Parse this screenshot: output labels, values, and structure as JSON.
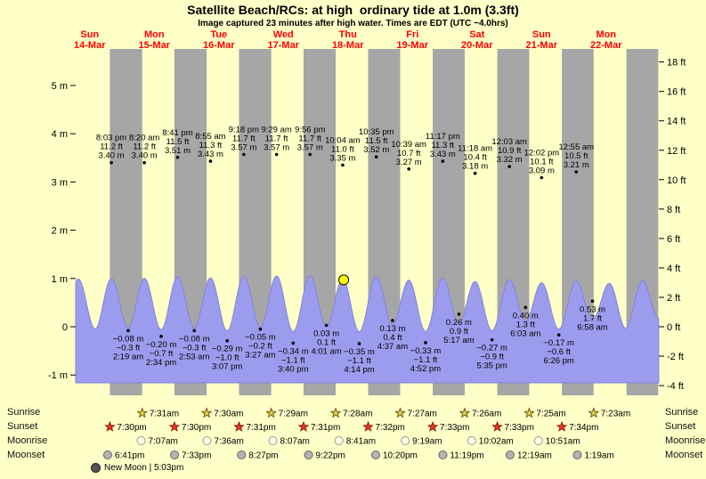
{
  "title": "Satellite Beach/RCs: at high  ordinary tide at 1.0m (3.3ft)",
  "subtitle": "Image captured 23 minutes after high water. Times are EDT (UTC −4.0hrs)",
  "colors": {
    "background": "#ffffc8",
    "night_band": "#a6a6a6",
    "tide_fill": "#9c9cee",
    "tide_stroke": "#8282dd",
    "day_label": "#ff0000",
    "marker_fill": "#ffff00",
    "sunrise_star": "#e0c84b",
    "sunset_star": "#ee3322",
    "moonrise_fill": "#ffffe8",
    "moonset_fill": "#b4b4b4",
    "annotation_text": "#000000"
  },
  "chart_data": {
    "type": "area",
    "title": "Tide height curve with high/low tide annotations",
    "xlabel": "Date",
    "ylabel_left": "meters",
    "ylabel_right": "feet",
    "ylim_m": [
      -1.2,
      5.5
    ],
    "grid": false,
    "days": [
      {
        "dow": "Sun",
        "date": "14-Mar"
      },
      {
        "dow": "Mon",
        "date": "15-Mar"
      },
      {
        "dow": "Tue",
        "date": "16-Mar"
      },
      {
        "dow": "Wed",
        "date": "17-Mar"
      },
      {
        "dow": "Thu",
        "date": "18-Mar"
      },
      {
        "dow": "Fri",
        "date": "19-Mar"
      },
      {
        "dow": "Sat",
        "date": "20-Mar"
      },
      {
        "dow": "Sun",
        "date": "21-Mar"
      },
      {
        "dow": "Mon",
        "date": "22-Mar"
      }
    ],
    "y_left_ticks": [
      {
        "label": "5 m",
        "value": 5
      },
      {
        "label": "4 m",
        "value": 4
      },
      {
        "label": "3 m",
        "value": 3
      },
      {
        "label": "2 m",
        "value": 2
      },
      {
        "label": "1 m",
        "value": 1
      },
      {
        "label": "0",
        "value": 0
      },
      {
        "label": "-1 m",
        "value": -1
      }
    ],
    "y_right_ticks": [
      {
        "label": "18 ft",
        "value": 18
      },
      {
        "label": "16 ft",
        "value": 16
      },
      {
        "label": "14 ft",
        "value": 14
      },
      {
        "label": "12 ft",
        "value": 12
      },
      {
        "label": "10 ft",
        "value": 10
      },
      {
        "label": "8 ft",
        "value": 8
      },
      {
        "label": "6 ft",
        "value": 6
      },
      {
        "label": "4 ft",
        "value": 4
      },
      {
        "label": "2 ft",
        "value": 2
      },
      {
        "label": "0 ft",
        "value": 0
      },
      {
        "label": "-2 ft",
        "value": -2
      },
      {
        "label": "-4 ft",
        "value": -4
      }
    ],
    "high_tides": [
      {
        "day": 0,
        "hour": 20.05,
        "time": "8:03 pm",
        "ft": "11.2 ft",
        "m": "3.40 m",
        "height_m": 3.4
      },
      {
        "day": 1,
        "hour": 8.333,
        "time": "8:20 am",
        "ft": "11.2 ft",
        "m": "3.40 m",
        "height_m": 3.4
      },
      {
        "day": 1,
        "hour": 20.683,
        "time": "8:41 pm",
        "ft": "11.5 ft",
        "m": "3.51 m",
        "height_m": 3.51
      },
      {
        "day": 2,
        "hour": 8.917,
        "time": "8:55 am",
        "ft": "11.3 ft",
        "m": "3.43 m",
        "height_m": 3.43
      },
      {
        "day": 2,
        "hour": 21.3,
        "time": "9:18 pm",
        "ft": "11.7 ft",
        "m": "3.57 m",
        "height_m": 3.57
      },
      {
        "day": 3,
        "hour": 9.483,
        "time": "9:29 am",
        "ft": "11.7 ft",
        "m": "3.57 m",
        "height_m": 3.57
      },
      {
        "day": 3,
        "hour": 21.933,
        "time": "9:56 pm",
        "ft": "11.7 ft",
        "m": "3.57 m",
        "height_m": 3.57
      },
      {
        "day": 4,
        "hour": 10.067,
        "time": "10:04 am",
        "ft": "11.0 ft",
        "m": "3.35 m",
        "height_m": 3.35
      },
      {
        "day": 4,
        "hour": 22.583,
        "time": "10:35 pm",
        "ft": "11.5 ft",
        "m": "3.52 m",
        "height_m": 3.52
      },
      {
        "day": 5,
        "hour": 10.65,
        "time": "10:39 am",
        "ft": "10.7 ft",
        "m": "3.27 m",
        "height_m": 3.27
      },
      {
        "day": 5,
        "hour": 23.283,
        "time": "11:17 pm",
        "ft": "11.3 ft",
        "m": "3.43 m",
        "height_m": 3.43
      },
      {
        "day": 6,
        "hour": 11.3,
        "time": "11:18 am",
        "ft": "10.4 ft",
        "m": "3.18 m",
        "height_m": 3.18
      },
      {
        "day": 7,
        "hour": 0.05,
        "time": "12:03 am",
        "ft": "10.9 ft",
        "m": "3.32 m",
        "height_m": 3.32
      },
      {
        "day": 7,
        "hour": 12.033,
        "time": "12:02 pm",
        "ft": "10.1 ft",
        "m": "3.09 m",
        "height_m": 3.09
      },
      {
        "day": 8,
        "hour": 0.917,
        "time": "12:55 am",
        "ft": "10.5 ft",
        "m": "3.21 m",
        "height_m": 3.21
      }
    ],
    "low_tides": [
      {
        "day": 1,
        "hour": 2.317,
        "m": "−0.08 m",
        "ft": "−0.3 ft",
        "time": "2:19 am",
        "height_m": -0.08
      },
      {
        "day": 1,
        "hour": 14.567,
        "m": "−0.20 m",
        "ft": "−0.7 ft",
        "time": "2:34 pm",
        "height_m": -0.2
      },
      {
        "day": 2,
        "hour": 2.883,
        "m": "−0.08 m",
        "ft": "−0.3 ft",
        "time": "2:53 am",
        "height_m": -0.08
      },
      {
        "day": 2,
        "hour": 15.117,
        "m": "−0.29 m",
        "ft": "−1.0 ft",
        "time": "3:07 pm",
        "height_m": -0.29
      },
      {
        "day": 3,
        "hour": 3.45,
        "m": "−0.05 m",
        "ft": "−0.2 ft",
        "time": "3:27 am",
        "height_m": -0.05
      },
      {
        "day": 3,
        "hour": 15.667,
        "m": "−0.34 m",
        "ft": "−1.1 ft",
        "time": "3:40 pm",
        "height_m": -0.34
      },
      {
        "day": 4,
        "hour": 4.017,
        "m": "0.03 m",
        "ft": "0.1 ft",
        "time": "4:01 am",
        "height_m": 0.03
      },
      {
        "day": 4,
        "hour": 16.233,
        "m": "−0.35 m",
        "ft": "−1.1 ft",
        "time": "4:14 pm",
        "height_m": -0.35
      },
      {
        "day": 5,
        "hour": 4.617,
        "m": "0.13 m",
        "ft": "0.4 ft",
        "time": "4:37 am",
        "height_m": 0.13
      },
      {
        "day": 5,
        "hour": 16.867,
        "m": "−0.33 m",
        "ft": "−1.1 ft",
        "time": "4:52 pm",
        "height_m": -0.33
      },
      {
        "day": 6,
        "hour": 5.283,
        "m": "0.26 m",
        "ft": "0.9 ft",
        "time": "5:17 am",
        "height_m": 0.26
      },
      {
        "day": 6,
        "hour": 17.583,
        "m": "−0.27 m",
        "ft": "−0.9 ft",
        "time": "5:35 pm",
        "height_m": -0.27
      },
      {
        "day": 7,
        "hour": 6.05,
        "m": "0.40 m",
        "ft": "1.3 ft",
        "time": "6:03 am",
        "height_m": 0.4
      },
      {
        "day": 7,
        "hour": 18.433,
        "m": "−0.17 m",
        "ft": "−0.6 ft",
        "time": "6:26 pm",
        "height_m": -0.17
      },
      {
        "day": 8,
        "hour": 6.967,
        "m": "0.53 m",
        "ft": "1.7 ft",
        "time": "6:58 am",
        "height_m": 0.53
      }
    ],
    "extra_extremes": [
      {
        "day": 0,
        "hour": 1.5,
        "height_m": -0.05
      },
      {
        "day": 0,
        "hour": 7.75,
        "height_m": 3.35
      },
      {
        "day": 0,
        "hour": 14.0,
        "height_m": -0.15
      },
      {
        "day": 8,
        "hour": 13.25,
        "height_m": 3.05
      },
      {
        "day": 8,
        "hour": 19.3,
        "height_m": -0.1
      },
      {
        "day": 9,
        "hour": 1.5,
        "height_m": 3.25
      },
      {
        "day": 9,
        "hour": 7.5,
        "height_m": 0.6
      }
    ],
    "curve_scale": 0.295,
    "current_marker": {
      "day": 4,
      "hour": 10.45,
      "display_m": 0.97
    },
    "sunset_hours": [
      19.5,
      19.5,
      19.517,
      19.517,
      19.533,
      19.55,
      19.55,
      19.567,
      19.567
    ],
    "next_sunrise_hours": [
      7.517,
      7.5,
      7.483,
      7.467,
      7.45,
      7.433,
      7.417,
      7.383,
      7.383
    ]
  },
  "astro": {
    "rows": [
      {
        "label": "Sunrise",
        "icon": "sunrise-star-icon",
        "kind": "sun",
        "events": [
          {
            "day": 1,
            "hour": 7.517,
            "time": "7:31am"
          },
          {
            "day": 2,
            "hour": 7.5,
            "time": "7:30am"
          },
          {
            "day": 3,
            "hour": 7.483,
            "time": "7:29am"
          },
          {
            "day": 4,
            "hour": 7.467,
            "time": "7:28am"
          },
          {
            "day": 5,
            "hour": 7.45,
            "time": "7:27am"
          },
          {
            "day": 6,
            "hour": 7.433,
            "time": "7:26am"
          },
          {
            "day": 7,
            "hour": 7.417,
            "time": "7:25am"
          },
          {
            "day": 8,
            "hour": 7.383,
            "time": "7:23am"
          }
        ]
      },
      {
        "label": "Sunset",
        "icon": "sunset-star-icon",
        "kind": "sun",
        "events": [
          {
            "day": 0,
            "hour": 19.5,
            "time": "7:30pm"
          },
          {
            "day": 1,
            "hour": 19.5,
            "time": "7:30pm"
          },
          {
            "day": 2,
            "hour": 19.517,
            "time": "7:31pm"
          },
          {
            "day": 3,
            "hour": 19.517,
            "time": "7:31pm"
          },
          {
            "day": 4,
            "hour": 19.533,
            "time": "7:32pm"
          },
          {
            "day": 5,
            "hour": 19.55,
            "time": "7:33pm"
          },
          {
            "day": 6,
            "hour": 19.55,
            "time": "7:33pm"
          },
          {
            "day": 7,
            "hour": 19.567,
            "time": "7:34pm"
          }
        ]
      },
      {
        "label": "Moonrise",
        "icon": "moonrise-circle-icon",
        "kind": "moon",
        "events": [
          {
            "day": 1,
            "hour": 7.117,
            "time": "7:07am"
          },
          {
            "day": 2,
            "hour": 7.6,
            "time": "7:36am"
          },
          {
            "day": 3,
            "hour": 8.117,
            "time": "8:07am"
          },
          {
            "day": 4,
            "hour": 8.683,
            "time": "8:41am"
          },
          {
            "day": 5,
            "hour": 9.317,
            "time": "9:19am"
          },
          {
            "day": 6,
            "hour": 10.033,
            "time": "10:02am"
          },
          {
            "day": 7,
            "hour": 10.85,
            "time": "10:51am"
          }
        ]
      },
      {
        "label": "Moonset",
        "icon": "moonset-circle-icon",
        "kind": "moon",
        "events": [
          {
            "day": 0,
            "hour": 18.683,
            "time": "6:41pm"
          },
          {
            "day": 1,
            "hour": 19.55,
            "time": "7:33pm"
          },
          {
            "day": 2,
            "hour": 20.45,
            "time": "8:27pm"
          },
          {
            "day": 3,
            "hour": 21.367,
            "time": "9:22pm"
          },
          {
            "day": 4,
            "hour": 22.333,
            "time": "10:20pm"
          },
          {
            "day": 5,
            "hour": 23.317,
            "time": "11:19pm"
          },
          {
            "day": 7,
            "hour": 0.317,
            "time": "12:19am"
          },
          {
            "day": 8,
            "hour": 1.317,
            "time": "1:19am"
          }
        ]
      }
    ],
    "new_moon": "New Moon | 5:03pm"
  }
}
